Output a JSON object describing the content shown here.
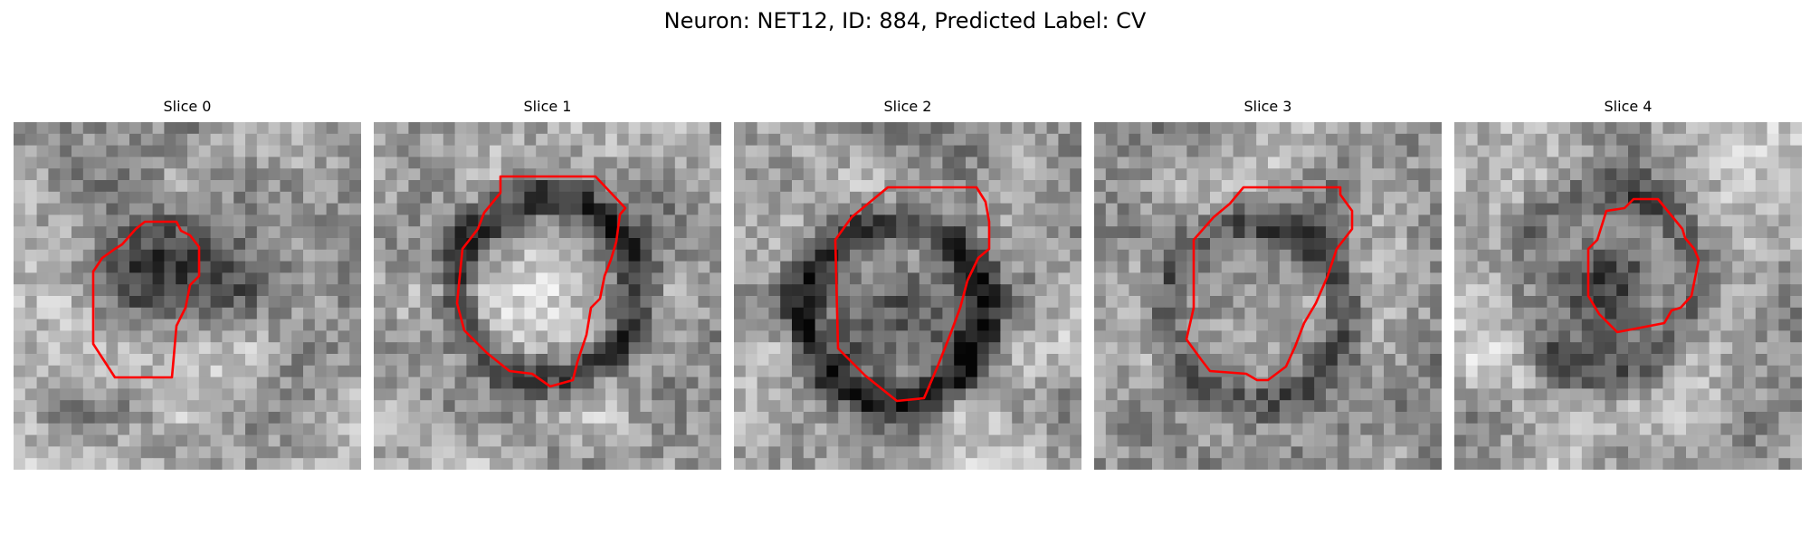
{
  "figure": {
    "title": "Neuron: NET12, ID: 884, Predicted Label: CV"
  },
  "panels": [
    {
      "title": "Slice 0",
      "contour_color": "#ff0000"
    },
    {
      "title": "Slice 1",
      "contour_color": "#ff0000"
    },
    {
      "title": "Slice 2",
      "contour_color": "#ff0000"
    },
    {
      "title": "Slice 3",
      "contour_color": "#ff0000"
    },
    {
      "title": "Slice 4",
      "contour_color": "#ff0000"
    }
  ]
}
